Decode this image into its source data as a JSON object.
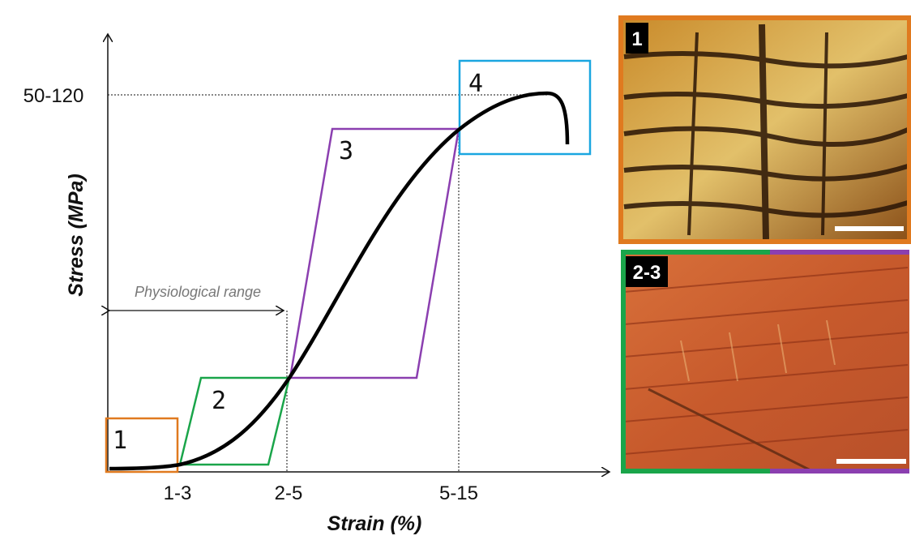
{
  "axes": {
    "y_label": "Stress (MPa)",
    "x_label": "Strain (%)",
    "y_tick": "50-120",
    "x_ticks": [
      "1-3",
      "2-5",
      "5-15"
    ]
  },
  "annotation": "Physiological range",
  "regions": [
    "1",
    "2",
    "3",
    "4"
  ],
  "images": [
    {
      "label": "1"
    },
    {
      "label": "2-3"
    }
  ]
}
